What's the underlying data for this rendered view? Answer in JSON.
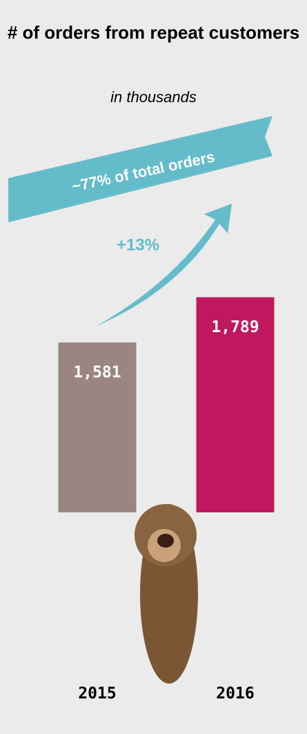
{
  "chart_data": {
    "type": "bar",
    "title": "# of orders from repeat customers",
    "subtitle": "in thousands",
    "categories": [
      "2015",
      "2016"
    ],
    "values": [
      1581,
      1789
    ],
    "value_labels": [
      "1,581",
      "1,789"
    ],
    "colors": [
      "#9a8582",
      "#c0185f"
    ],
    "ylim": [
      800,
      1800
    ],
    "annotations": [
      "~77% of total orders",
      "+13%"
    ]
  }
}
